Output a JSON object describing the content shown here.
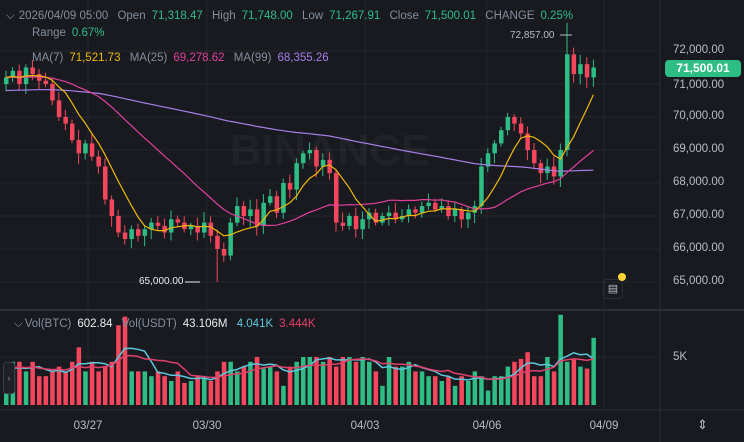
{
  "header": {
    "datetime": "2026/04/09 05:00",
    "open_label": "Open",
    "open": "71,318.47",
    "high_label": "High",
    "high": "71,748.00",
    "low_label": "Low",
    "low": "71,267.91",
    "close_label": "Close",
    "close": "71,500.01",
    "change_label": "CHANGE",
    "change": "0.25%",
    "range_label": "Range",
    "range": "0.67%"
  },
  "ma": {
    "ma7_label": "MA(7)",
    "ma7": "71,521.73",
    "ma25_label": "MA(25)",
    "ma25": "69,278.62",
    "ma99_label": "MA(99)",
    "ma99": "68,355.26"
  },
  "volume_header": {
    "vol_btc_label": "Vol(BTC)",
    "vol_btc": "602.84",
    "vol_usdt_label": "Vol(USDT)",
    "vol_usdt": "43.106M",
    "vol_ma1": "4.041K",
    "vol_ma2": "3.444K"
  },
  "watermark": "BINANCE",
  "current_price": "71,500.01",
  "annotations": {
    "high_marker": "72,857.00",
    "low_marker": "65,000.00"
  },
  "price_axis": [
    "72,000.00",
    "71,000.00",
    "70,000.00",
    "69,000.00",
    "68,000.00",
    "67,000.00",
    "66,000.00",
    "65,000.00"
  ],
  "volume_axis": [
    "5K"
  ],
  "time_axis": [
    "03/27",
    "03/30",
    "04/03",
    "04/06",
    "04/09"
  ],
  "colors": {
    "up": "#2ebd85",
    "down": "#f6465d",
    "ma7": "#f0b90b",
    "ma25": "#e0409b",
    "ma99": "#a77ee8",
    "vol_ma1": "#5bc8dc",
    "vol_ma2": "#e0406b",
    "background": "#181a20"
  },
  "icons": [
    "collapse-chevron-icon",
    "news-icon",
    "expand-axis-icon",
    "panel-toggle-icon"
  ],
  "chart_data": {
    "type": "candlestick",
    "interval_hint": "hourly",
    "ylim": [
      64800,
      73000
    ],
    "volume_unit": "K BTC",
    "closes": [
      71200,
      71400,
      71000,
      71500,
      71300,
      71100,
      71000,
      70500,
      70000,
      69800,
      69300,
      68900,
      69200,
      68800,
      68500,
      67500,
      67000,
      66500,
      66300,
      66600,
      66400,
      66600,
      66800,
      66700,
      66500,
      66900,
      66800,
      66600,
      66700,
      66500,
      66800,
      66400,
      66000,
      65800,
      66800,
      67300,
      67000,
      67200,
      66700,
      67400,
      67600,
      67100,
      68000,
      67800,
      68600,
      68900,
      69000,
      68500,
      68700,
      68300,
      66800,
      66700,
      67000,
      66600,
      66900,
      67100,
      66800,
      67000,
      67100,
      66900,
      67000,
      67200,
      67100,
      67300,
      67400,
      67200,
      67300,
      67000,
      67200,
      66900,
      67100,
      67300,
      68500,
      68900,
      69200,
      69600,
      70000,
      69800,
      69500,
      69000,
      68600,
      68300,
      68500,
      68200,
      69000,
      71900,
      71300,
      71600,
      71200,
      71500
    ],
    "extreme_high": 72857,
    "extreme_low": 65000,
    "volumes": [
      2.5,
      4.5,
      4.5,
      3.5,
      4.5,
      3.0,
      3.0,
      3.5,
      4.0,
      3.5,
      4.5,
      6.0,
      3.5,
      4.5,
      3.5,
      4.0,
      4.5,
      8.3,
      9.2,
      3.5,
      3.5,
      3.5,
      3.0,
      3.5,
      3.0,
      2.5,
      3.5,
      2.3,
      2.5,
      3.0,
      2.8,
      2.5,
      3.5,
      4.5,
      4.5,
      3.5,
      4.0,
      4.5,
      5.0,
      3.8,
      4.0,
      3.5,
      2.0,
      4.0,
      4.5,
      5.0,
      5.0,
      5.0,
      4.5,
      5.0,
      4.0,
      5.0,
      5.0,
      4.5,
      5.0,
      4.5,
      3.5,
      2.0,
      5.0,
      4.0,
      4.0,
      4.5,
      3.5,
      3.5,
      3.0,
      3.0,
      2.5,
      3.0,
      2.0,
      3.0,
      2.5,
      3.5,
      3.0,
      1.5,
      3.0,
      3.0,
      4.0,
      4.5,
      4.8,
      5.5,
      3.0,
      3.0,
      5.0,
      3.5,
      9.4,
      4.5,
      4.8,
      4.0,
      3.8,
      7.0
    ]
  }
}
